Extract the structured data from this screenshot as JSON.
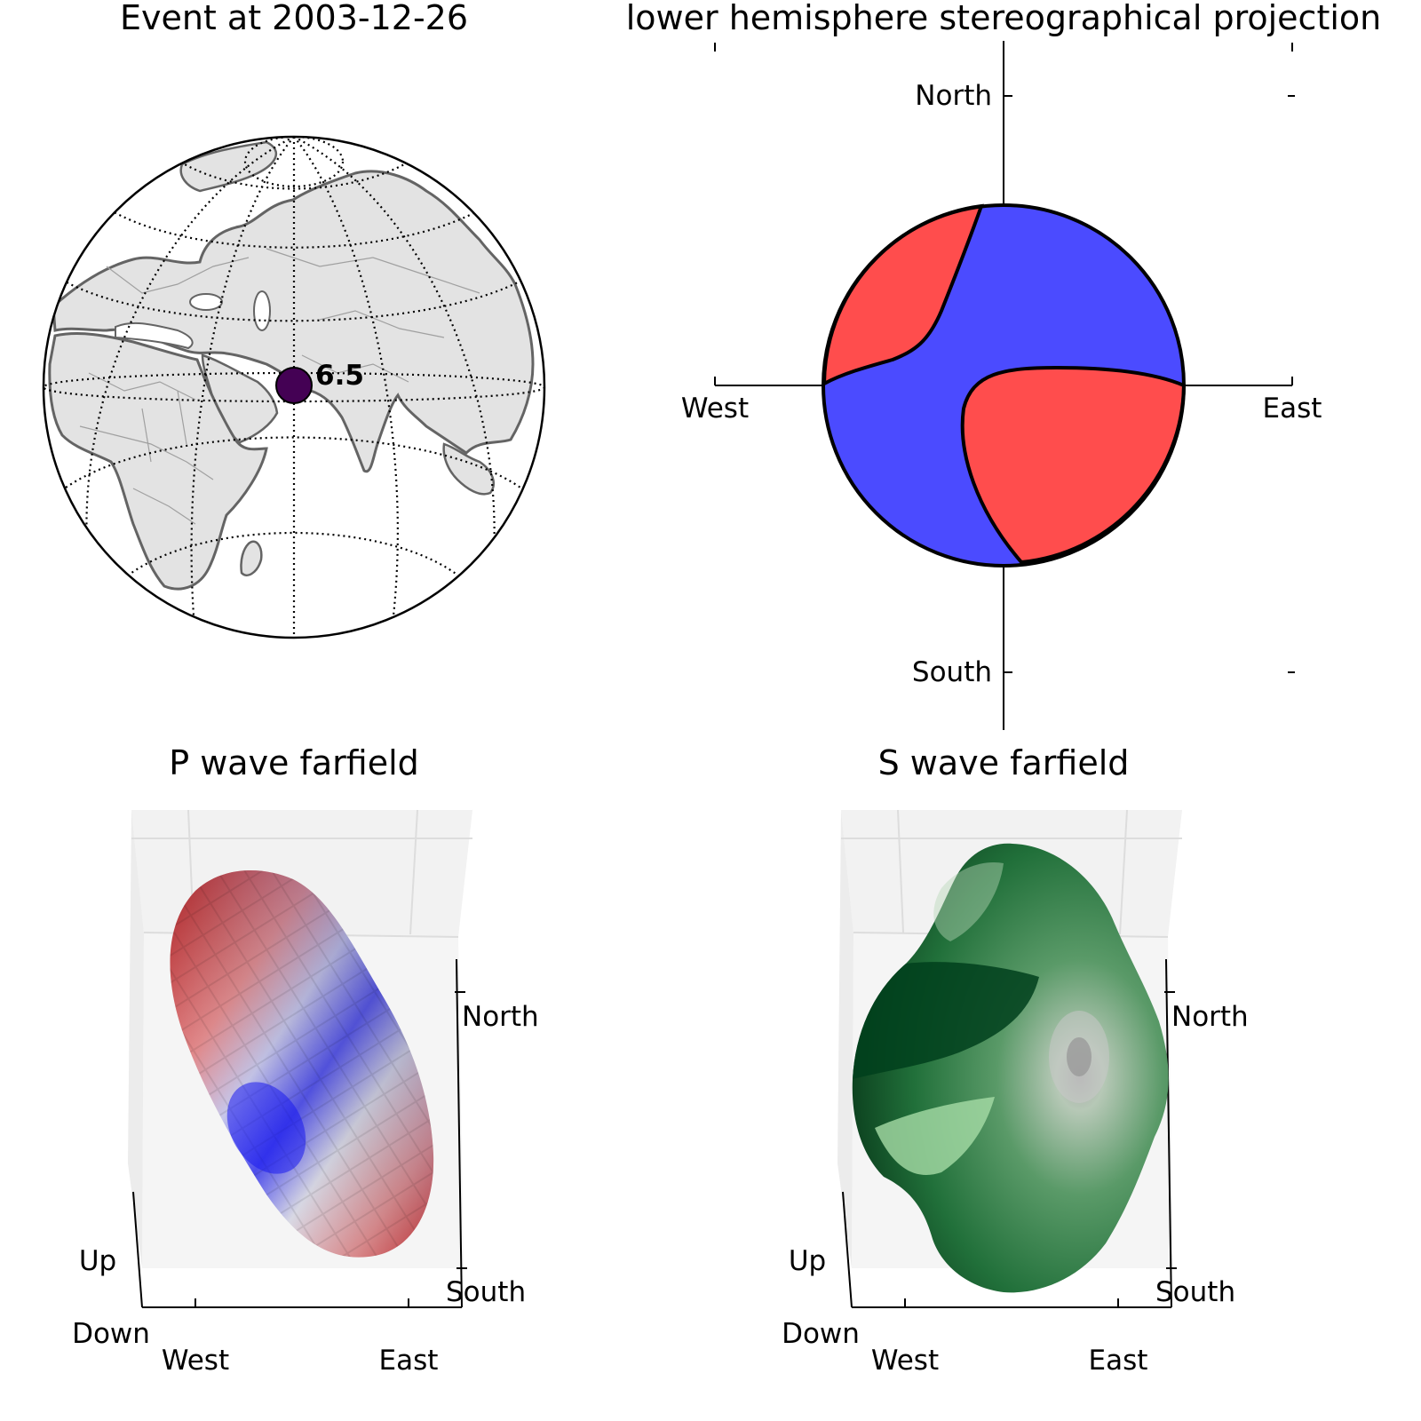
{
  "globe_panel": {
    "title": "Event at 2003-12-26",
    "event_magnitude": "6.5",
    "colors": {
      "land": "#e3e3e3",
      "coast": "#646464",
      "border": "#a0a0a0",
      "event": "#440154"
    }
  },
  "beachball_panel": {
    "title": "lower hemisphere stereographical projection",
    "labels": {
      "north": "North",
      "south": "South",
      "west": "West",
      "east": "East"
    },
    "colors": {
      "compression": "#4b4bff",
      "dilatation": "#ff4d4d"
    }
  },
  "p_wave_panel": {
    "title": "P wave farfield",
    "labels": {
      "north": "North",
      "south": "South",
      "west": "West",
      "east": "East",
      "up": "Up",
      "down": "Down"
    },
    "colormap": "bwr"
  },
  "s_wave_panel": {
    "title": "S wave farfield",
    "labels": {
      "north": "North",
      "south": "South",
      "west": "West",
      "east": "East",
      "up": "Up",
      "down": "Down"
    },
    "colormap": "greens"
  }
}
